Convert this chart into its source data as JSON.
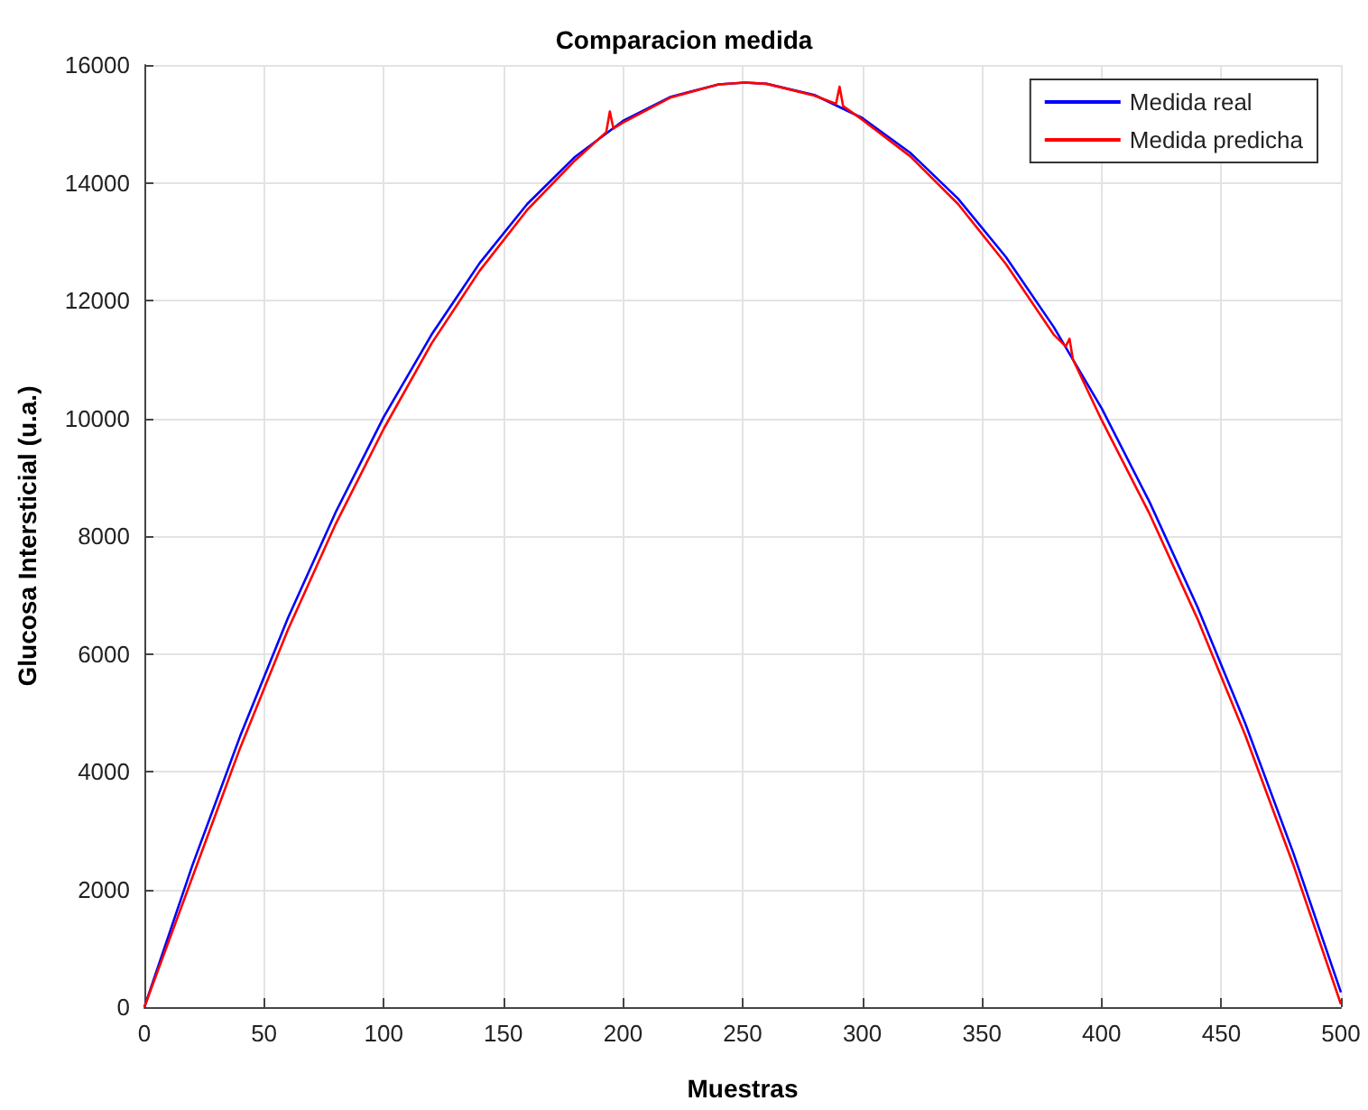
{
  "chart_data": {
    "type": "line",
    "title": "Comparacion medida",
    "xlabel": "Muestras",
    "ylabel": "Glucosa Intersticial (u.a.)",
    "xlim": [
      0,
      500
    ],
    "xticks": [
      0,
      50,
      100,
      150,
      200,
      250,
      300,
      350,
      400,
      450,
      500
    ],
    "ylim": [
      0,
      16000
    ],
    "yticks": [
      0,
      2000,
      4000,
      6000,
      8000,
      10000,
      12000,
      14000,
      16000
    ],
    "grid": true,
    "legend": "top right",
    "marker": "none",
    "line_style": "solid",
    "series": [
      {
        "name": "Medida real",
        "color": "#0000ff",
        "x": [
          0,
          20,
          40,
          60,
          80,
          100,
          120,
          140,
          160,
          180,
          200,
          220,
          240,
          251,
          260,
          280,
          300,
          320,
          340,
          360,
          380,
          400,
          420,
          440,
          460,
          480,
          500
        ],
        "values": [
          0,
          2400,
          4600,
          6610,
          8410,
          10020,
          11420,
          12630,
          13640,
          14440,
          15050,
          15460,
          15670,
          15700,
          15680,
          15490,
          15100,
          14510,
          13730,
          12740,
          11550,
          10170,
          8580,
          6800,
          4820,
          2630,
          250
        ]
      },
      {
        "name": "Medida predicha",
        "color": "#ff0000",
        "x": [
          0,
          20,
          40,
          60,
          80,
          100,
          120,
          140,
          160,
          180,
          193,
          194.5,
          196,
          200,
          220,
          240,
          251,
          260,
          280,
          289,
          290.5,
          292,
          300,
          320,
          340,
          360,
          380,
          385,
          386.6,
          388,
          400,
          420,
          440,
          460,
          480,
          500
        ],
        "values": [
          0,
          2200,
          4400,
          6410,
          8210,
          9820,
          11270,
          12500,
          13540,
          14380,
          14860,
          15210,
          14920,
          15020,
          15450,
          15670,
          15700,
          15680,
          15480,
          15340,
          15630,
          15300,
          15070,
          14450,
          13640,
          12620,
          11420,
          11220,
          11350,
          11000,
          9970,
          8380,
          6600,
          4620,
          2430,
          50
        ]
      }
    ]
  }
}
